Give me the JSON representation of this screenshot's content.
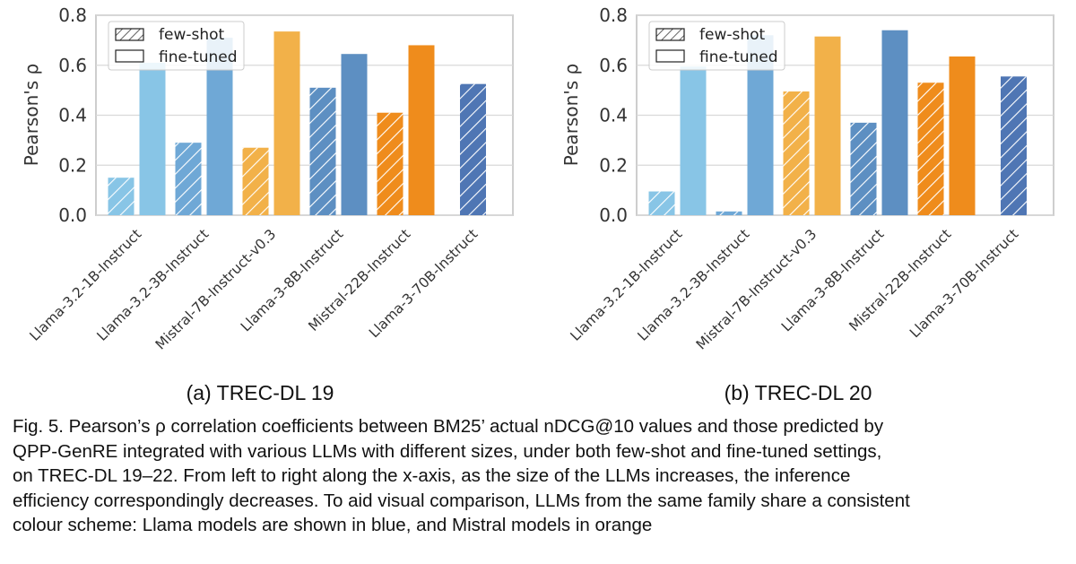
{
  "chart_data": [
    {
      "type": "bar",
      "subcaption": "(a) TREC-DL 19",
      "ylabel": "Pearson's ρ",
      "ylim": [
        0,
        0.8
      ],
      "yticks": [
        "0.0",
        "0.2",
        "0.4",
        "0.6",
        "0.8"
      ],
      "categories": [
        "Llama-3.2-1B-Instruct",
        "Llama-3.2-3B-Instruct",
        "Mistral-7B-Instruct-v0.3",
        "Llama-3-8B-Instruct",
        "Mistral-22B-Instruct",
        "Llama-3-70B-Instruct"
      ],
      "series": [
        {
          "name": "few-shot",
          "hatched": true,
          "values": [
            0.15,
            0.29,
            0.27,
            0.51,
            0.41,
            0.525
          ]
        },
        {
          "name": "fine-tuned",
          "hatched": false,
          "values": [
            0.61,
            0.71,
            0.735,
            0.645,
            0.68,
            null
          ]
        }
      ],
      "colors": [
        "#88c5e6",
        "#6fa8d6",
        "#f2b149",
        "#5d8fc2",
        "#ef8c1c",
        "#4f76b4"
      ],
      "legend": {
        "placement": "top-left",
        "entries": [
          "few-shot",
          "fine-tuned"
        ]
      },
      "grid": true
    },
    {
      "type": "bar",
      "subcaption": "(b) TREC-DL 20",
      "ylabel": "Pearson's ρ",
      "ylim": [
        0,
        0.8
      ],
      "yticks": [
        "0.0",
        "0.2",
        "0.4",
        "0.6",
        "0.8"
      ],
      "categories": [
        "Llama-3.2-1B-Instruct",
        "Llama-3.2-3B-Instruct",
        "Mistral-7B-Instruct-v0.3",
        "Llama-3-8B-Instruct",
        "Mistral-22B-Instruct",
        "Llama-3-70B-Instruct"
      ],
      "series": [
        {
          "name": "few-shot",
          "hatched": true,
          "values": [
            0.095,
            0.015,
            0.495,
            0.37,
            0.53,
            0.555
          ]
        },
        {
          "name": "fine-tuned",
          "hatched": false,
          "values": [
            0.595,
            0.72,
            0.715,
            0.74,
            0.635,
            null
          ]
        }
      ],
      "colors": [
        "#88c5e6",
        "#6fa8d6",
        "#f2b149",
        "#5d8fc2",
        "#ef8c1c",
        "#4f76b4"
      ],
      "legend": {
        "placement": "top-left",
        "entries": [
          "few-shot",
          "fine-tuned"
        ]
      },
      "grid": true
    }
  ],
  "caption": {
    "lines": [
      "Fig. 5.  Pearson’s ρ correlation coefficients between BM25’ actual nDCG@10 values and those predicted by",
      "QPP-GenRE integrated with various LLMs with different sizes, under both few-shot and fine-tuned settings,",
      "on TREC-DL 19–22. From left to right along the x-axis, as the size of the LLMs increases, the inference",
      "efficiency correspondingly decreases. To aid visual comparison, LLMs from the same family share a consistent",
      "colour scheme: Llama models are shown in blue, and Mistral models in orange"
    ]
  }
}
